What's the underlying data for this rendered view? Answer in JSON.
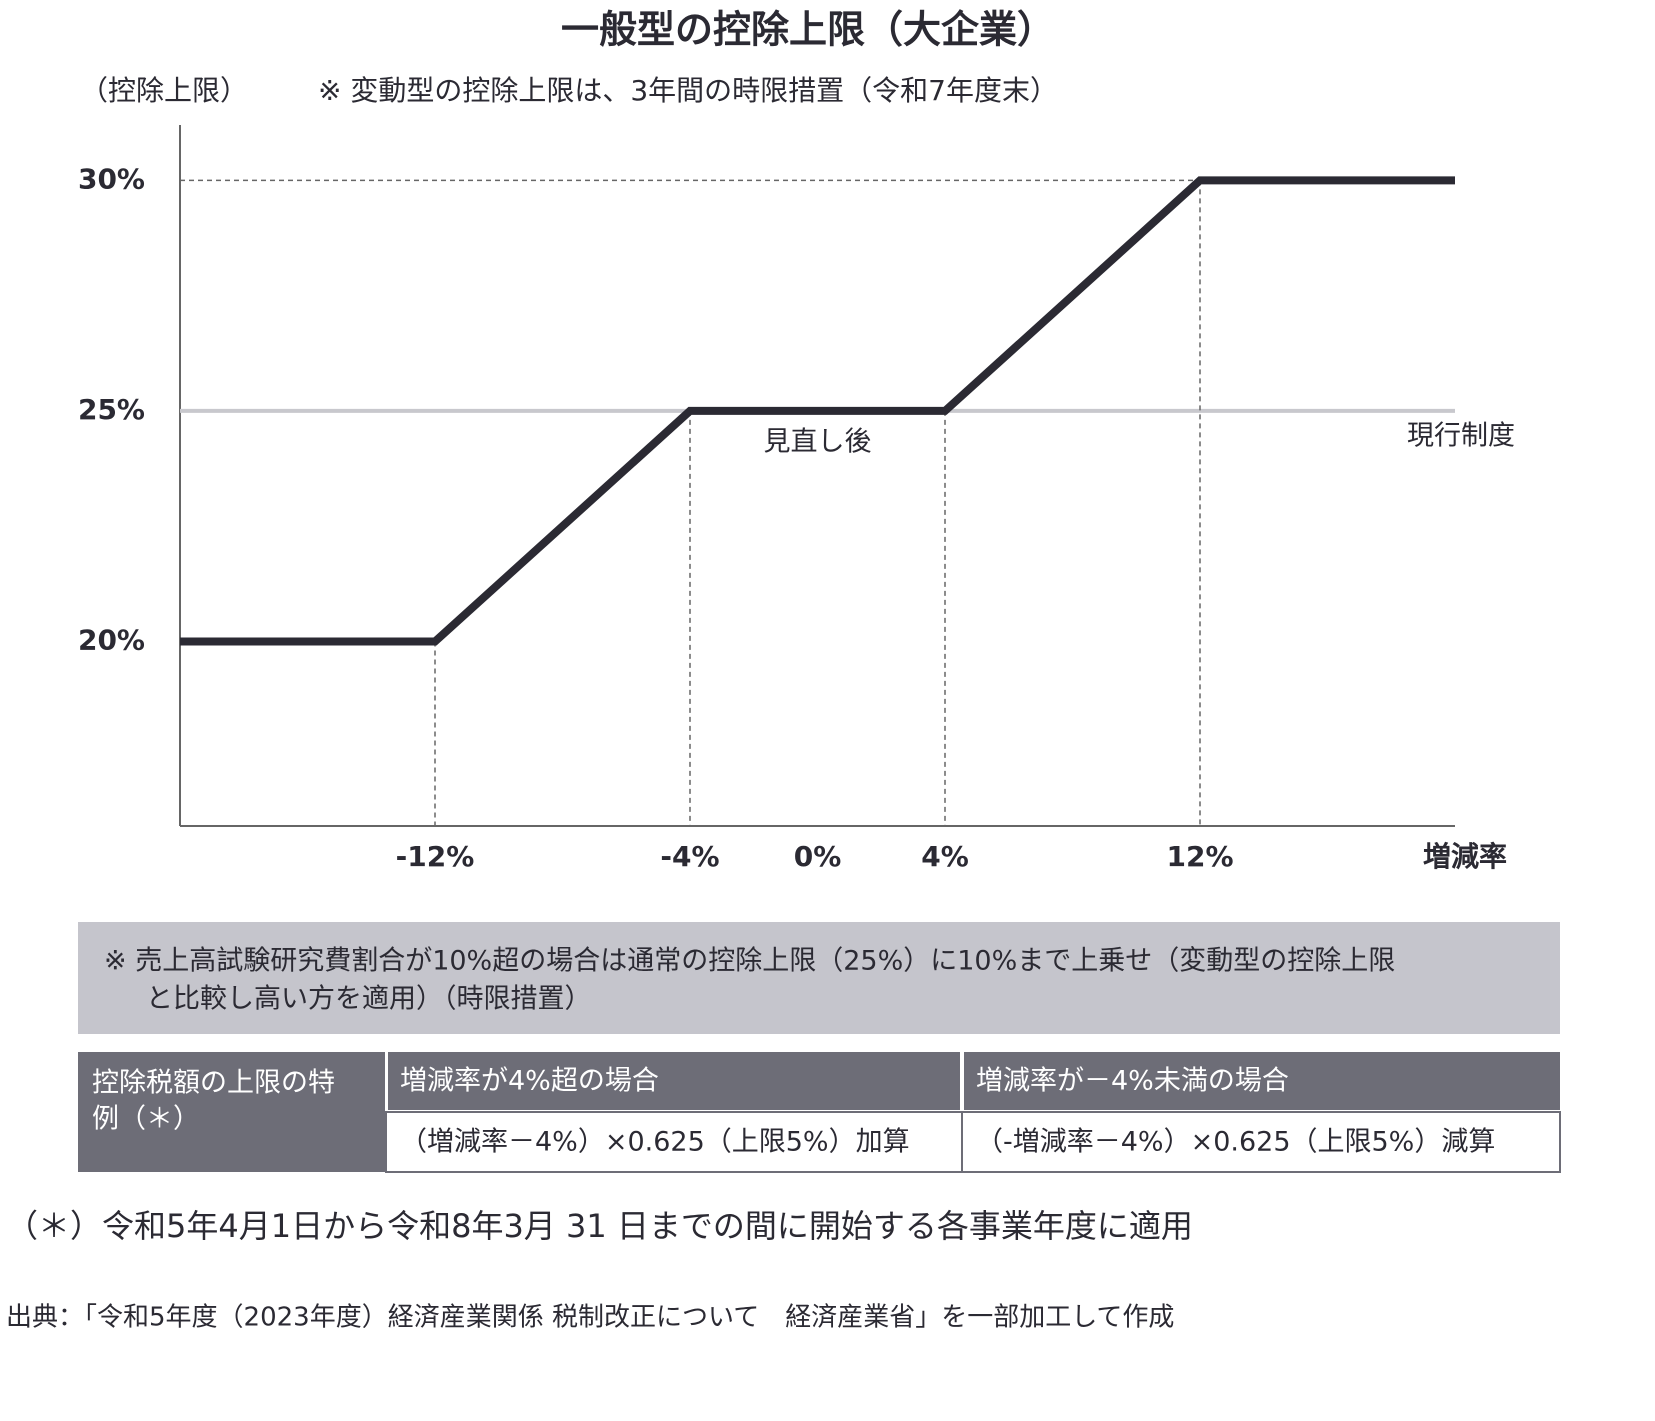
{
  "chart_data": {
    "type": "line",
    "title": "一般型の控除上限（大企業）",
    "y_label": "（控除上限）",
    "note": "※ 変動型の控除上限は、3年間の時限措置（令和7年度末）",
    "x_label": "増減率",
    "xlim": [
      -20,
      20
    ],
    "ylim": [
      16,
      31.2
    ],
    "xticks": [
      {
        "value": -12,
        "label": "-12%"
      },
      {
        "value": -4,
        "label": "-4%"
      },
      {
        "value": 0,
        "label": "0%"
      },
      {
        "value": 4,
        "label": "4%"
      },
      {
        "value": 12,
        "label": "12%"
      }
    ],
    "yticks": [
      {
        "value": 20,
        "label": "20%"
      },
      {
        "value": 25,
        "label": "25%"
      },
      {
        "value": 30,
        "label": "30%"
      }
    ],
    "series": [
      {
        "name": "現行制度",
        "color": "#c8c8cd",
        "x": [
          -20,
          20
        ],
        "values": [
          25,
          25
        ]
      },
      {
        "name": "見直し後",
        "color": "#2b2a33",
        "x": [
          -20,
          -12,
          -4,
          4,
          12,
          20
        ],
        "values": [
          20,
          20,
          25,
          25,
          30,
          30
        ]
      }
    ]
  },
  "note_box": {
    "lines": [
      "※ 売上高試験研究費割合が10%超の場合は通常の控除上限（25%）に10%まで上乗せ（変動型の控除上限",
      "と比較し高い方を適用）（時限措置）"
    ]
  },
  "table": {
    "row_header": [
      "控除税額の上限の特",
      "例（＊）"
    ],
    "columns": [
      "増減率が4%超の場合",
      "増減率が－4%未満の場合"
    ],
    "cells": [
      "（増減率－4%）×0.625（上限5%）加算",
      "（-増減率－4%）×0.625（上限5%）減算"
    ]
  },
  "footnote": "（＊）令和5年4月1日から令和8年3月 31 日までの間に開始する各事業年度に適用",
  "source": "出典：「令和5年度（2023年度）経済産業関係 税制改正について　経済産業省」を一部加工して作成"
}
